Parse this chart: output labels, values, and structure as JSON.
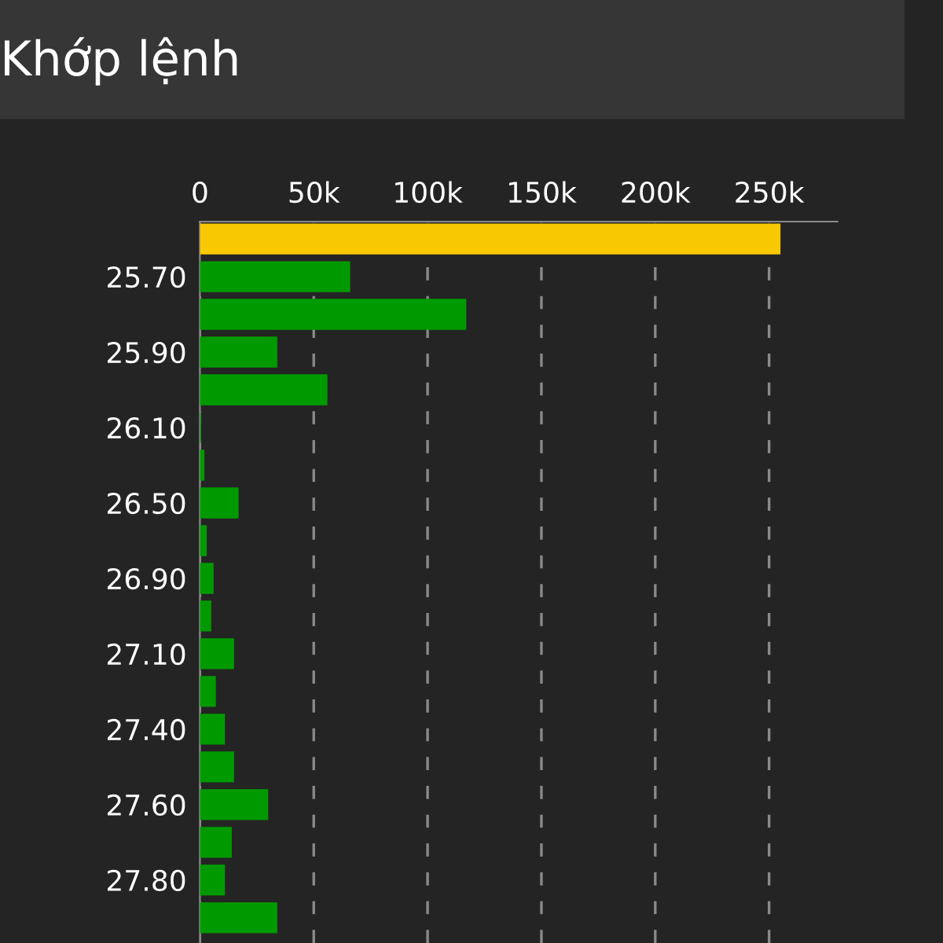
{
  "chart_data": {
    "type": "bar",
    "orientation": "horizontal",
    "title": "Khớp lệnh",
    "categories": [
      null,
      "25.70",
      null,
      "25.90",
      null,
      "26.10",
      null,
      "26.50",
      null,
      "26.90",
      null,
      "27.10",
      null,
      "27.40",
      null,
      "27.60",
      null,
      "27.80",
      null
    ],
    "values": [
      255000,
      66000,
      117000,
      34000,
      56000,
      500,
      2000,
      17000,
      3000,
      6000,
      5000,
      15000,
      7000,
      11000,
      15000,
      30000,
      14000,
      11000,
      34000
    ],
    "colors": [
      "#f8c800",
      "#009a00",
      "#009a00",
      "#009a00",
      "#009a00",
      "#009a00",
      "#009a00",
      "#009a00",
      "#009a00",
      "#009a00",
      "#009a00",
      "#009a00",
      "#009a00",
      "#009a00",
      "#009a00",
      "#009a00",
      "#009a00",
      "#009a00",
      "#009a00"
    ],
    "xlim": [
      0,
      280000
    ],
    "xticks": [
      0,
      {
        "value": 50000,
        "label": "50k"
      },
      {
        "value": 100000,
        "label": "100k"
      },
      {
        "value": 150000,
        "label": "150k"
      },
      {
        "value": 200000,
        "label": "200k"
      },
      {
        "value": 250000,
        "label": "250k"
      }
    ],
    "grid": "x",
    "line_style": "dashed"
  }
}
